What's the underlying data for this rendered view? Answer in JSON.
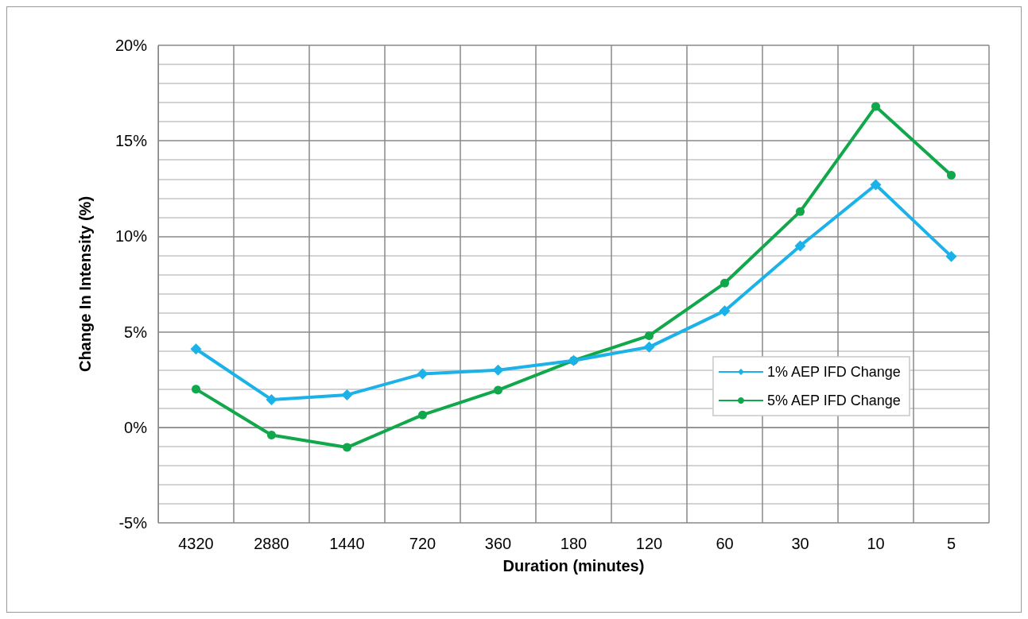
{
  "chart_data": {
    "type": "line",
    "xlabel": "Duration (minutes)",
    "ylabel": "Change In Intensity (%)",
    "categories": [
      "4320",
      "2880",
      "1440",
      "720",
      "360",
      "180",
      "120",
      "60",
      "30",
      "10",
      "5"
    ],
    "series": [
      {
        "name": "1% AEP IFD Change",
        "color": "#1ab2e8",
        "marker": "diamond",
        "values": [
          4.1,
          1.45,
          1.7,
          2.8,
          3.0,
          3.5,
          4.2,
          6.1,
          9.5,
          12.7,
          8.95
        ]
      },
      {
        "name": "5% AEP IFD Change",
        "color": "#10a84a",
        "marker": "circle",
        "values": [
          2.0,
          -0.4,
          -1.05,
          0.65,
          1.95,
          3.5,
          4.8,
          7.55,
          11.3,
          16.8,
          13.2
        ]
      }
    ],
    "ylim": [
      -5,
      20
    ],
    "yticks": [
      {
        "value": -5,
        "label": "-5%"
      },
      {
        "value": 0,
        "label": "0%"
      },
      {
        "value": 5,
        "label": "5%"
      },
      {
        "value": 10,
        "label": "10%"
      },
      {
        "value": 15,
        "label": "15%"
      },
      {
        "value": 20,
        "label": "20%"
      }
    ],
    "grid": true,
    "legend": "right"
  }
}
